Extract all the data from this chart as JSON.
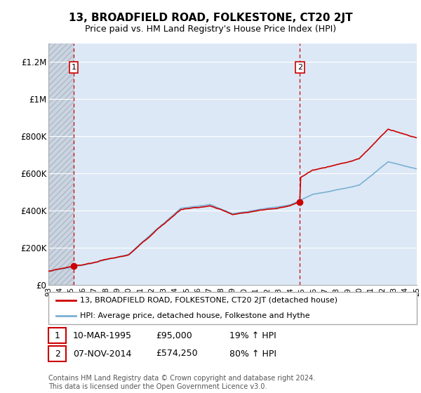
{
  "title": "13, BROADFIELD ROAD, FOLKESTONE, CT20 2JT",
  "subtitle": "Price paid vs. HM Land Registry's House Price Index (HPI)",
  "ylim": [
    0,
    1300000
  ],
  "yticks": [
    0,
    200000,
    400000,
    600000,
    800000,
    1000000,
    1200000
  ],
  "ytick_labels": [
    "£0",
    "£200K",
    "£400K",
    "£600K",
    "£800K",
    "£1M",
    "£1.2M"
  ],
  "x_start_year": 1993,
  "x_end_year": 2025,
  "transaction1_year": 1995.19,
  "transaction1_price": 95000,
  "transaction1_label": "1",
  "transaction1_date": "10-MAR-1995",
  "transaction1_hpi_pct": "19%",
  "transaction1_price_str": "£95,000",
  "transaction2_year": 2014.85,
  "transaction2_price": 574250,
  "transaction2_label": "2",
  "transaction2_date": "07-NOV-2014",
  "transaction2_hpi_pct": "80%",
  "transaction2_price_str": "£574,250",
  "legend_line1": "13, BROADFIELD ROAD, FOLKESTONE, CT20 2JT (detached house)",
  "legend_line2": "HPI: Average price, detached house, Folkestone and Hythe",
  "footer": "Contains HM Land Registry data © Crown copyright and database right 2024.\nThis data is licensed under the Open Government Licence v3.0.",
  "line_color_property": "#cc0000",
  "line_color_hpi": "#7ab0d4",
  "dashed_line_color": "#cc0000",
  "marker_box_color": "#cc0000",
  "plot_bg": "#dce8f5",
  "hatch_bg": "#ccd4e0"
}
